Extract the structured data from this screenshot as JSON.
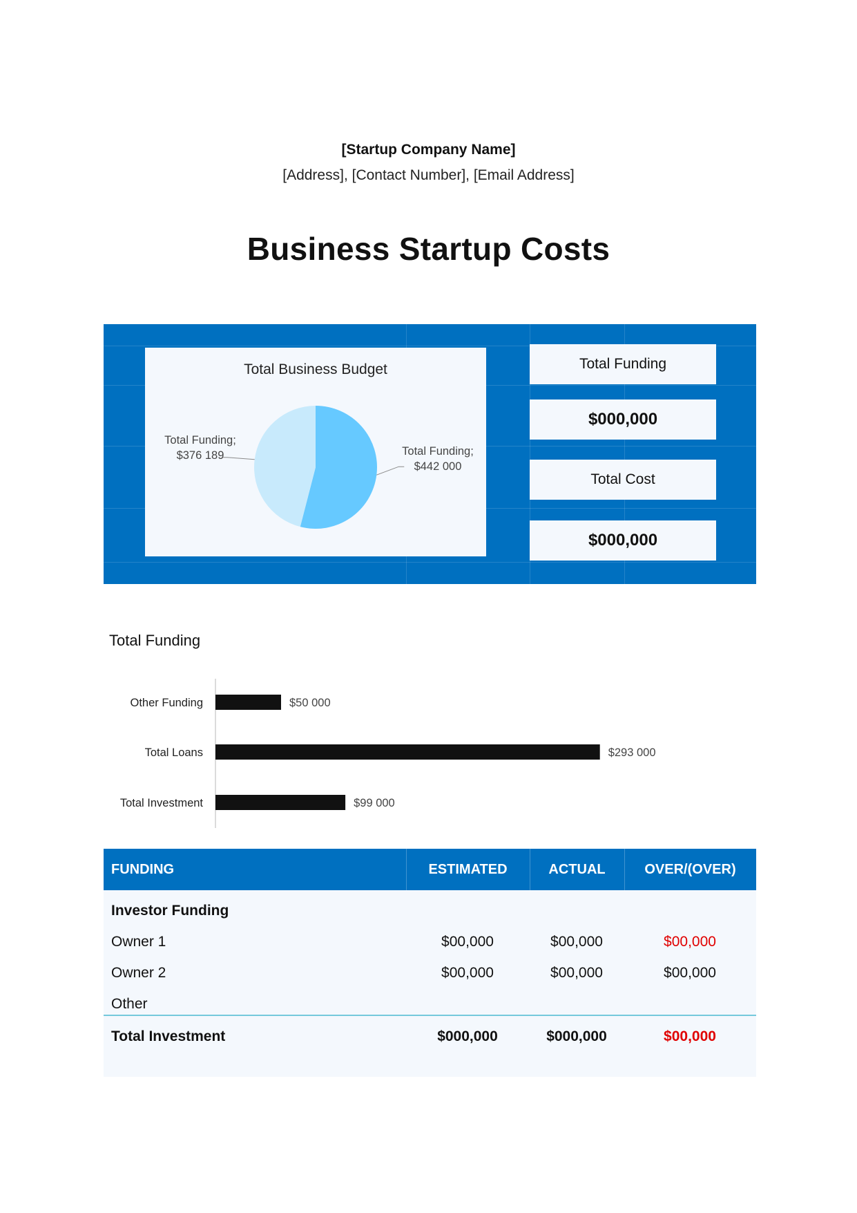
{
  "header": {
    "company_name": "[Startup Company Name]",
    "contact_line": "[Address], [Contact Number], [Email Address]",
    "title": "Business Startup Costs"
  },
  "dashboard": {
    "pie_chart": {
      "chart_data": {
        "type": "pie",
        "title": "Total Business Budget",
        "slices": [
          {
            "label": "Total Funding;",
            "value_text": "$442 000",
            "value": 442000,
            "color": "#66c9ff"
          },
          {
            "label": "Total Funding;",
            "value_text": "$376 189",
            "value": 376189,
            "color": "#c8eafc"
          }
        ]
      }
    },
    "stats": {
      "funding_label": "Total Funding",
      "funding_value": "$000,000",
      "cost_label": "Total Cost",
      "cost_value": "$000,000"
    }
  },
  "funding_chart": {
    "chart_data": {
      "type": "bar",
      "title": "Total Funding",
      "orientation": "horizontal",
      "categories": [
        "Other Funding",
        "Total Loans",
        "Total Investment"
      ],
      "values": [
        50000,
        293000,
        99000
      ],
      "value_labels": [
        "$50 000",
        "$293 000",
        "$99 000"
      ],
      "xlim": [
        0,
        330000
      ],
      "bar_color": "#111111"
    }
  },
  "funding_table": {
    "headers": {
      "funding": "FUNDING",
      "estimated": "ESTIMATED",
      "actual": "ACTUAL",
      "over": "OVER/(OVER)"
    },
    "section_label": "Investor Funding",
    "rows": [
      {
        "label": "Owner 1",
        "estimated": "$00,000",
        "actual": "$00,000",
        "over": "$00,000",
        "over_negative": true
      },
      {
        "label": "Owner 2",
        "estimated": "$00,000",
        "actual": "$00,000",
        "over": "$00,000",
        "over_negative": false
      },
      {
        "label": "Other",
        "estimated": "",
        "actual": "",
        "over": "",
        "over_negative": false
      }
    ],
    "total": {
      "label": "Total Investment",
      "estimated": "$000,000",
      "actual": "$000,000",
      "over": "$00,000"
    },
    "colors": {
      "header": "#0070c0",
      "negative": "#e00000"
    }
  }
}
